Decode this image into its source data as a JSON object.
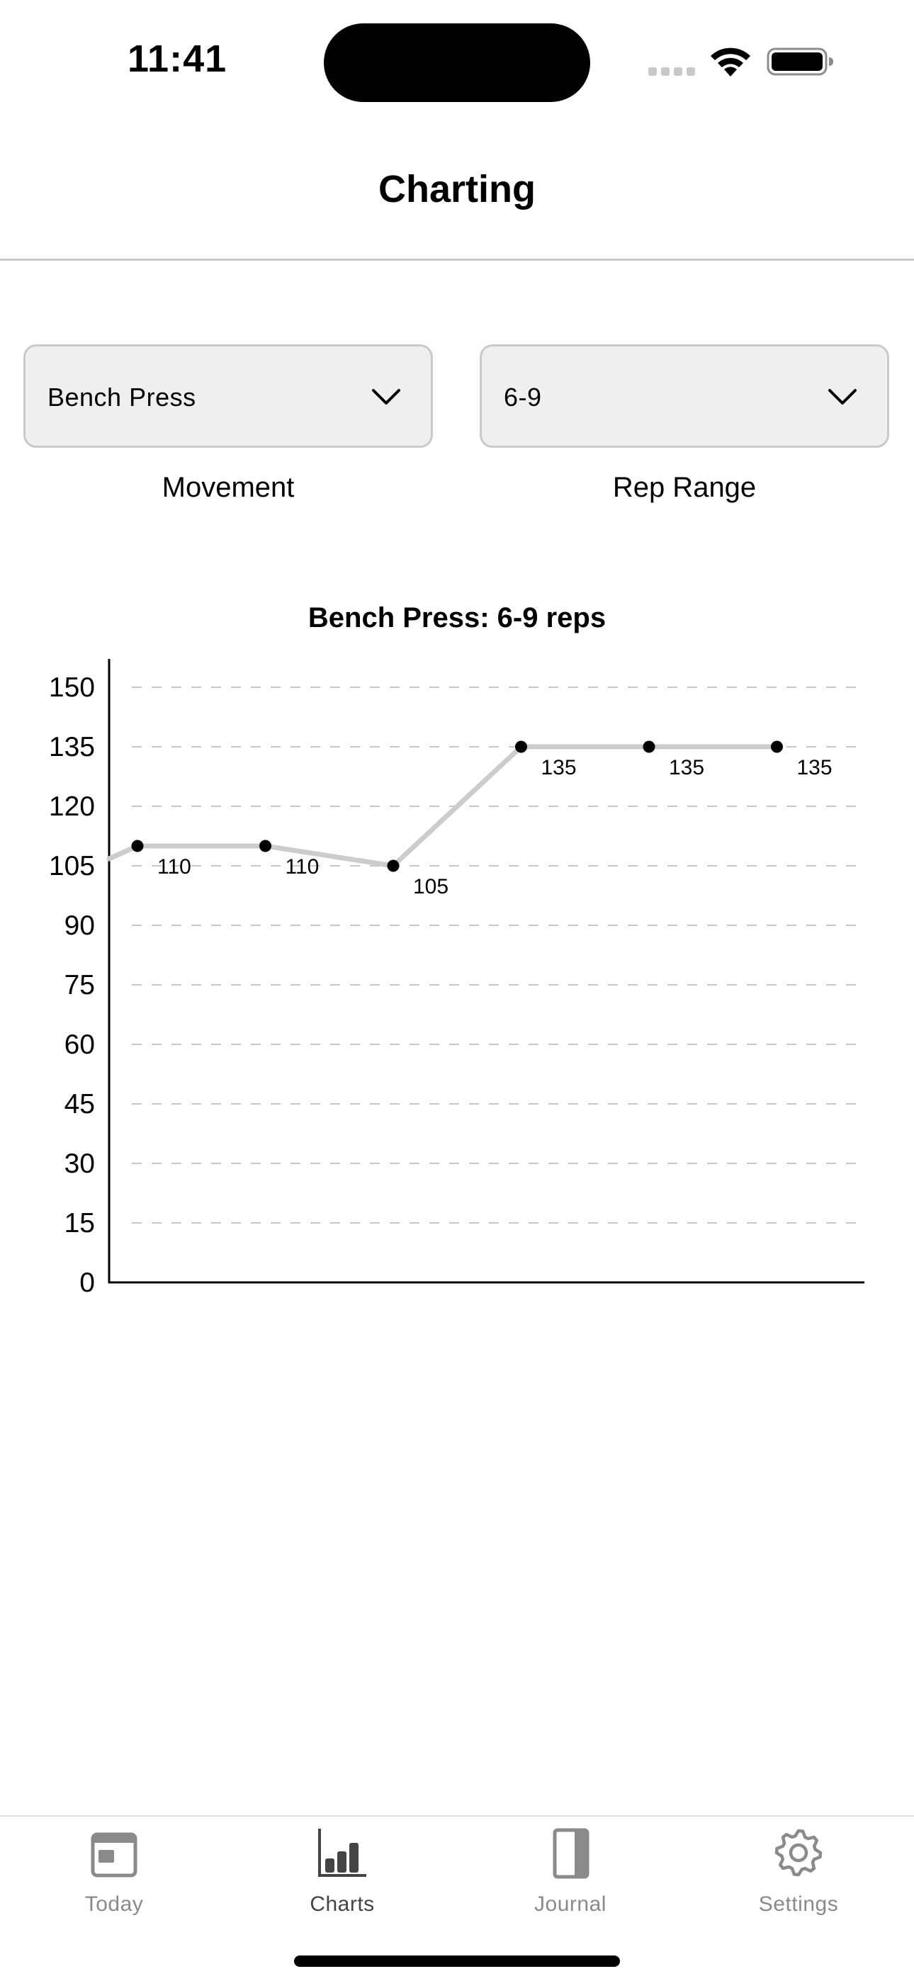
{
  "status_bar": {
    "time": "11:41"
  },
  "nav": {
    "title": "Charting"
  },
  "pickers": {
    "movement": {
      "value": "Bench Press",
      "caption": "Movement",
      "icon": "chevron-down-icon"
    },
    "rep_range": {
      "value": "6-9",
      "caption": "Rep Range",
      "icon": "chevron-down-icon"
    }
  },
  "chart_data": {
    "type": "line",
    "title": "Bench Press: 6-9 reps",
    "xlabel": "",
    "ylabel": "",
    "ylim": [
      0,
      150
    ],
    "yticks": [
      "150",
      "135",
      "120",
      "105",
      "90",
      "75",
      "60",
      "45",
      "30",
      "15",
      "0"
    ],
    "grid": true,
    "series": [
      {
        "values": [
          110,
          110,
          105,
          135,
          135,
          135
        ],
        "labels": [
          "110",
          "110",
          "105",
          "135",
          "135",
          "135"
        ],
        "color": "#cccccc",
        "marker_color": "#000000"
      }
    ],
    "line_enters_from_left": true
  },
  "tab_bar": {
    "tabs": [
      {
        "label": "Today",
        "icon": "calendar-icon",
        "active": false
      },
      {
        "label": "Charts",
        "icon": "bar-chart-icon",
        "active": true
      },
      {
        "label": "Journal",
        "icon": "book-icon",
        "active": false
      },
      {
        "label": "Settings",
        "icon": "gear-icon",
        "active": false
      }
    ]
  },
  "colors": {
    "picker_background": "#efefef",
    "picker_border": "#c9c9c9",
    "line": "#cccccc",
    "marker": "#000000",
    "gridline": "#c8c8c8",
    "tab_inactive": "#8a8a8a",
    "tab_active": "#444444"
  }
}
